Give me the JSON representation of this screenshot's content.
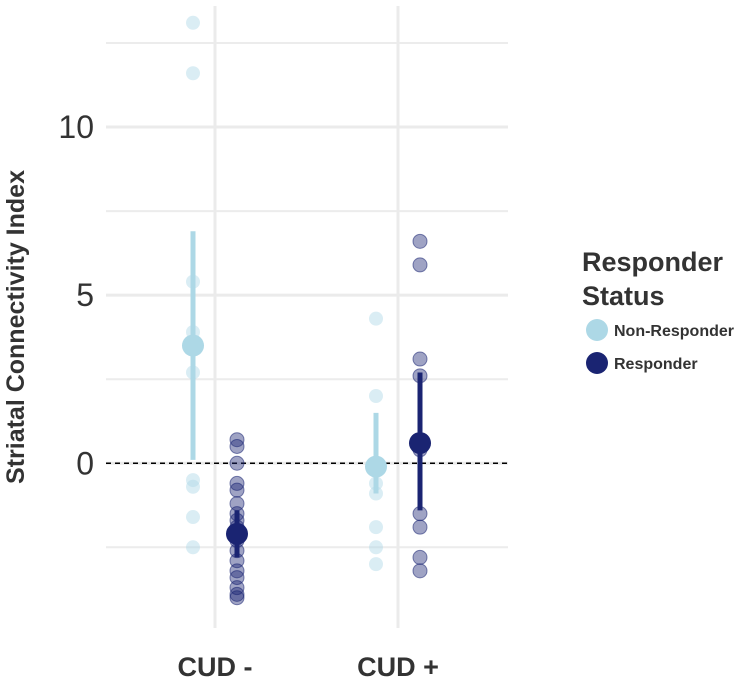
{
  "chart_data": {
    "type": "scatter",
    "ylabel": "Striatal Connectivity Index",
    "xlabel": "",
    "categories": [
      "CUD -",
      "CUD +"
    ],
    "y_ticks": [
      0,
      5,
      10
    ],
    "y_tick_labels": [
      "0",
      "5",
      "10"
    ],
    "ylim": [
      -4.9,
      13.6
    ],
    "reference_line": {
      "y": 0,
      "style": "dashed"
    },
    "grid": true,
    "legend": {
      "title_lines": [
        "Responder",
        "Status"
      ],
      "placement": "right"
    },
    "series": [
      {
        "name": "Non-Responder",
        "color": "#add8e6",
        "points": [
          {
            "category": "CUD -",
            "values": [
              13.1,
              11.6,
              5.4,
              3.9,
              2.7,
              -0.5,
              -0.7,
              -1.6,
              -2.5
            ]
          },
          {
            "category": "CUD +",
            "values": [
              4.3,
              2.0,
              -0.6,
              -0.9,
              -1.9,
              -2.5,
              -3.0
            ]
          }
        ],
        "summary": [
          {
            "category": "CUD -",
            "mean": 3.5,
            "lower": 0.1,
            "upper": 6.9
          },
          {
            "category": "CUD +",
            "mean": -0.1,
            "lower": -0.9,
            "upper": 1.5
          }
        ]
      },
      {
        "name": "Responder",
        "color": "#1a2472",
        "points": [
          {
            "category": "CUD -",
            "values": [
              0.7,
              0.5,
              0.0,
              -0.6,
              -0.8,
              -1.2,
              -1.5,
              -1.7,
              -1.9,
              -2.1,
              -2.3,
              -2.6,
              -2.9,
              -3.2,
              -3.4,
              -3.7,
              -3.9,
              -4.0
            ]
          },
          {
            "category": "CUD +",
            "values": [
              6.6,
              5.9,
              3.1,
              2.6,
              0.6,
              0.4,
              -1.5,
              -1.9,
              -2.8,
              -3.2
            ]
          }
        ],
        "summary": [
          {
            "category": "CUD -",
            "mean": -2.1,
            "lower": -2.8,
            "upper": -1.4
          },
          {
            "category": "CUD +",
            "mean": 0.6,
            "lower": -1.4,
            "upper": 2.7
          }
        ]
      }
    ]
  }
}
